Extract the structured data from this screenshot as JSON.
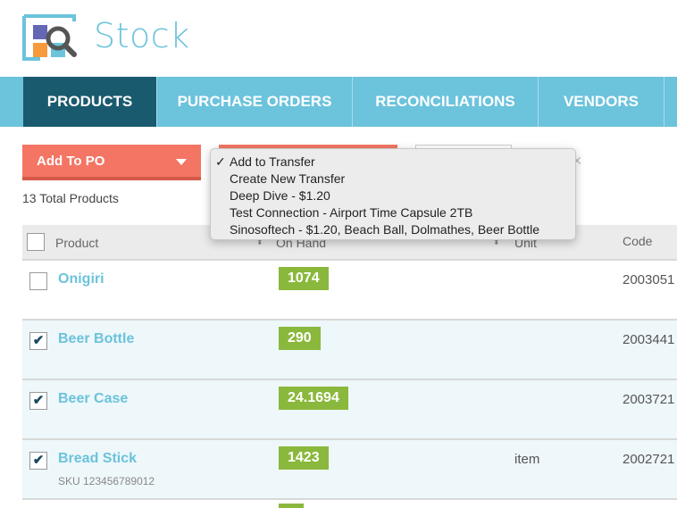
{
  "brand": {
    "name": "Stock"
  },
  "nav": {
    "tabs": [
      {
        "label": "PRODUCTS",
        "active": true
      },
      {
        "label": "PURCHASE ORDERS"
      },
      {
        "label": "RECONCILIATIONS"
      },
      {
        "label": "VENDORS"
      }
    ]
  },
  "toolbar": {
    "add_to_po": "Add To PO",
    "close": "×"
  },
  "total": "13 Total Products",
  "table": {
    "headers": {
      "product": "Product",
      "on_hand": "On Hand",
      "unit": "Unit",
      "code": "Code"
    },
    "rows": [
      {
        "name": "Onigiri",
        "sku": "",
        "on_hand": "1074",
        "unit": "",
        "code": "2003051",
        "checked": false
      },
      {
        "name": "Beer Bottle",
        "sku": "",
        "on_hand": "290",
        "unit": "",
        "code": "2003441",
        "checked": true
      },
      {
        "name": "Beer Case",
        "sku": "",
        "on_hand": "24.1694",
        "unit": "",
        "code": "2003721",
        "checked": true
      },
      {
        "name": "Bread Stick",
        "sku": "SKU 123456789012",
        "on_hand": "1423",
        "unit": "item",
        "code": "2002721",
        "checked": true
      }
    ]
  },
  "dropdown": {
    "checkmark": "✓",
    "items": [
      "Add to Transfer",
      "Create New Transfer",
      "Deep Dive - $1.20",
      "Test Connection - Airport Time Capsule 2TB",
      "Sinosoftech - $1.20, Beach Ball, Dolmathes, Beer Bottle"
    ],
    "selected": 0
  },
  "colors": {
    "accent": "#6bc3dc",
    "active_tab": "#1a5a6e",
    "button": "#f47564",
    "qty_badge": "#8ab83c"
  }
}
